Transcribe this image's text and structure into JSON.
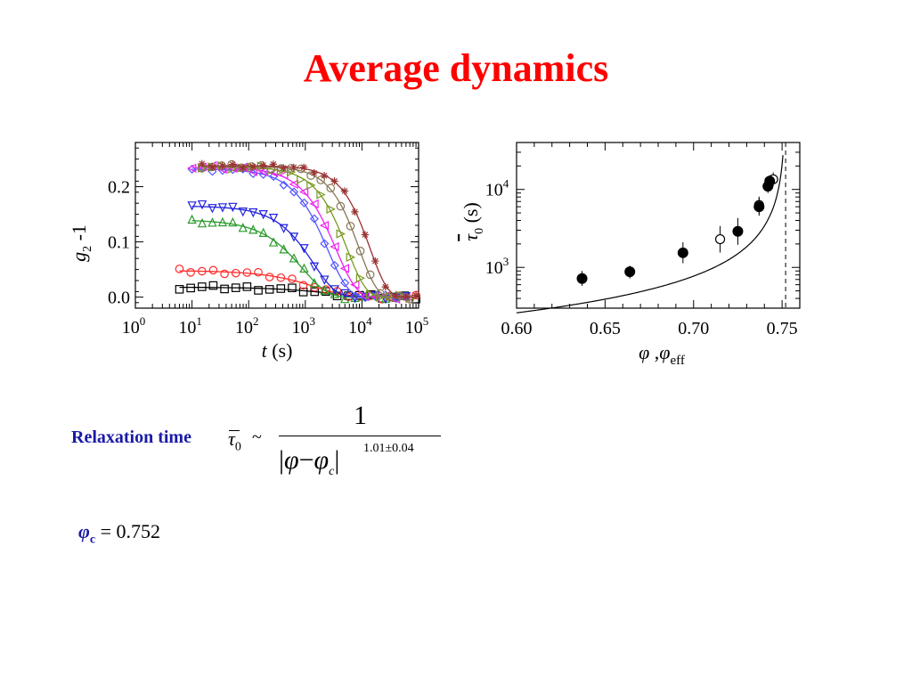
{
  "slide": {
    "title": "Average dynamics",
    "title_color": "#ff0000",
    "text_color": "#1a1aa6"
  },
  "equation": {
    "label": "Relaxation time",
    "lhs_symbol": "τ",
    "lhs_subscript": "0",
    "relation": "~",
    "numerator": "1",
    "denominator_phi": "φ",
    "denominator_minus": "−",
    "denominator_phic": "φ",
    "denominator_phic_sub": "c",
    "exponent": "1.01±0.04",
    "phic_symbol": "φ",
    "phic_sub": "c",
    "phic_value": "= 0.752"
  },
  "chart_data": [
    {
      "type": "scatter",
      "title": "",
      "xlabel": "t (s)",
      "ylabel": "g2-1",
      "xscale": "log",
      "xlim": [
        1,
        100000
      ],
      "ylim": [
        -0.02,
        0.28
      ],
      "x_ticks": [
        {
          "base": "10",
          "exp": "0"
        },
        {
          "base": "10",
          "exp": "1"
        },
        {
          "base": "10",
          "exp": "2"
        },
        {
          "base": "10",
          "exp": "3"
        },
        {
          "base": "10",
          "exp": "4"
        },
        {
          "base": "10",
          "exp": "5"
        }
      ],
      "y_ticks": [
        "0.0",
        "0.1",
        "0.2"
      ],
      "legend": "none",
      "series": [
        {
          "color": "#000000",
          "marker": "square",
          "plateau": 0.018,
          "tau": 3000,
          "beta": 0.7,
          "tmin": 6,
          "tmax": 90000
        },
        {
          "color": "#ff2a2a",
          "marker": "circle",
          "plateau": 0.048,
          "tau": 1600,
          "beta": 0.8,
          "tmin": 6,
          "tmax": 90000
        },
        {
          "color": "#2a9a2a",
          "marker": "triangle-up",
          "plateau": 0.14,
          "tau": 900,
          "beta": 1.0,
          "tmin": 10,
          "tmax": 60000
        },
        {
          "color": "#2222dd",
          "marker": "triangle-down",
          "plateau": 0.165,
          "tau": 1400,
          "beta": 1.1,
          "tmin": 10,
          "tmax": 60000
        },
        {
          "color": "#5555ff",
          "marker": "diamond",
          "plateau": 0.232,
          "tau": 2500,
          "beta": 1.2,
          "tmin": 10,
          "tmax": 60000
        },
        {
          "color": "#ee22ee",
          "marker": "triangle-left",
          "plateau": 0.235,
          "tau": 3500,
          "beta": 1.2,
          "tmin": 10,
          "tmax": 60000
        },
        {
          "color": "#7a9a22",
          "marker": "triangle-right",
          "plateau": 0.236,
          "tau": 5500,
          "beta": 1.3,
          "tmin": 15,
          "tmax": 70000
        },
        {
          "color": "#887755",
          "marker": "circle",
          "plateau": 0.237,
          "tau": 9000,
          "beta": 1.4,
          "tmin": 15,
          "tmax": 70000
        },
        {
          "color": "#993333",
          "marker": "star",
          "plateau": 0.238,
          "tau": 14000,
          "beta": 1.4,
          "tmin": 15,
          "tmax": 90000
        }
      ]
    },
    {
      "type": "scatter",
      "title": "",
      "xlabel": "φ , φeff",
      "ylabel": "τ0 (s)",
      "yscale": "log",
      "xlim": [
        0.6,
        0.76
      ],
      "ylim": [
        300,
        40000
      ],
      "x_ticks": [
        "0.60",
        "0.65",
        "0.70",
        "0.75"
      ],
      "y_ticks": [
        {
          "base": "10",
          "exp": "3"
        },
        {
          "base": "10",
          "exp": "4"
        }
      ],
      "divergence_x": 0.752,
      "fit": {
        "A": 39,
        "phic": 0.752,
        "exponent": 1.01
      },
      "legend": "none",
      "points_filled": [
        {
          "x": 0.637,
          "y": 720,
          "err": [
            580,
            900
          ]
        },
        {
          "x": 0.664,
          "y": 880,
          "err": [
            720,
            1050
          ]
        },
        {
          "x": 0.694,
          "y": 1540,
          "err": [
            1130,
            2100
          ]
        },
        {
          "x": 0.725,
          "y": 2900,
          "err": [
            1950,
            4300
          ]
        },
        {
          "x": 0.737,
          "y": 6000,
          "err": [
            4600,
            7800
          ]
        },
        {
          "x": 0.742,
          "y": 11000,
          "err": [
            9000,
            13500
          ]
        },
        {
          "x": 0.743,
          "y": 12800,
          "err": [
            10800,
            15200
          ]
        }
      ],
      "points_open": [
        {
          "x": 0.715,
          "y": 2300,
          "err": [
            1550,
            3400
          ]
        },
        {
          "x": 0.737,
          "y": 6300,
          "err": [
            4900,
            8100
          ]
        },
        {
          "x": 0.745,
          "y": 13500,
          "err": [
            11000,
            16500
          ]
        }
      ]
    }
  ]
}
